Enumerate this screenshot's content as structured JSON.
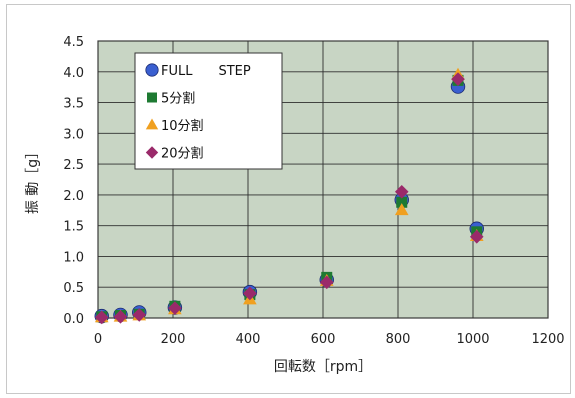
{
  "chart_data": {
    "type": "scatter",
    "xlabel": "回転数［rpm］",
    "ylabel": "振 動［g］",
    "xlim": [
      0,
      1200
    ],
    "ylim": [
      0,
      4.5
    ],
    "xticks": [
      "0",
      "200",
      "400",
      "600",
      "800",
      "1000",
      "1200"
    ],
    "yticks": [
      "0.0",
      "0.5",
      "1.0",
      "1.5",
      "2.0",
      "2.5",
      "3.0",
      "3.5",
      "4.0",
      "4.5"
    ],
    "grid": true,
    "legend_position": "top-left",
    "series": [
      {
        "name": "FULL　　STEP",
        "marker": "circle",
        "color": "#3a5fd0",
        "x": [
          10,
          60,
          110,
          205,
          405,
          610,
          810,
          960,
          1010
        ],
        "y": [
          0.03,
          0.05,
          0.09,
          0.17,
          0.42,
          0.62,
          1.92,
          3.76,
          1.45
        ]
      },
      {
        "name": "5分割",
        "marker": "square",
        "color": "#1e7a32",
        "x": [
          10,
          60,
          110,
          205,
          405,
          610,
          810,
          960,
          1010
        ],
        "y": [
          0.02,
          0.04,
          0.06,
          0.19,
          0.38,
          0.66,
          1.88,
          3.86,
          1.4
        ]
      },
      {
        "name": "10分割",
        "marker": "triangle",
        "color": "#f0a020",
        "x": [
          10,
          60,
          110,
          205,
          405,
          610,
          810,
          960,
          1010
        ],
        "y": [
          0.01,
          0.02,
          0.04,
          0.14,
          0.3,
          0.6,
          1.75,
          3.95,
          1.33
        ]
      },
      {
        "name": "20分割",
        "marker": "diamond",
        "color": "#9a2a6a",
        "x": [
          10,
          60,
          110,
          205,
          405,
          610,
          810,
          960,
          1010
        ],
        "y": [
          0.01,
          0.02,
          0.05,
          0.16,
          0.4,
          0.58,
          2.05,
          3.88,
          1.32
        ]
      }
    ]
  }
}
